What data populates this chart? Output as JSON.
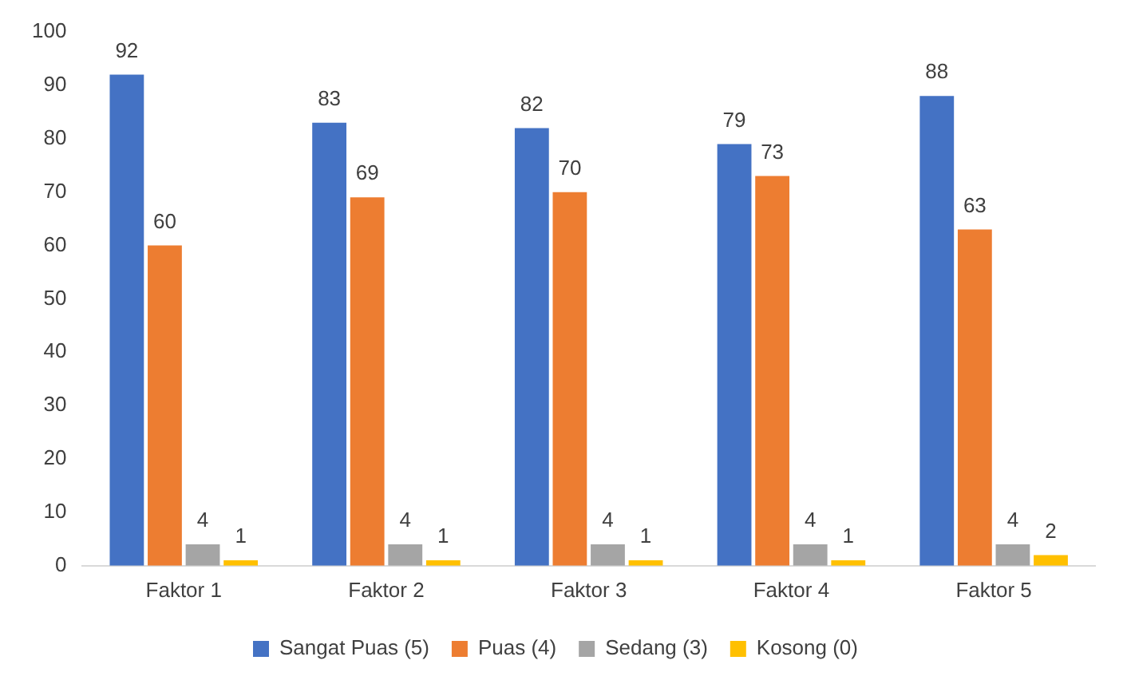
{
  "chart_data": {
    "type": "bar",
    "categories": [
      "Faktor 1",
      "Faktor 2",
      "Faktor 3",
      "Faktor 4",
      "Faktor 5"
    ],
    "series": [
      {
        "name": "Sangat Puas (5)",
        "color": "#4472c4",
        "values": [
          92,
          83,
          82,
          79,
          88
        ]
      },
      {
        "name": "Puas (4)",
        "color": "#ed7d31",
        "values": [
          60,
          69,
          70,
          73,
          63
        ]
      },
      {
        "name": "Sedang (3)",
        "color": "#a5a5a5",
        "values": [
          4,
          4,
          4,
          4,
          4
        ]
      },
      {
        "name": "Kosong (0)",
        "color": "#ffc000",
        "values": [
          1,
          1,
          1,
          1,
          2
        ]
      }
    ],
    "ylim": [
      0,
      100
    ],
    "yticks": [
      0,
      10,
      20,
      30,
      40,
      50,
      60,
      70,
      80,
      90,
      100
    ],
    "grid": false,
    "legend": "bottom",
    "data_labels": true
  }
}
